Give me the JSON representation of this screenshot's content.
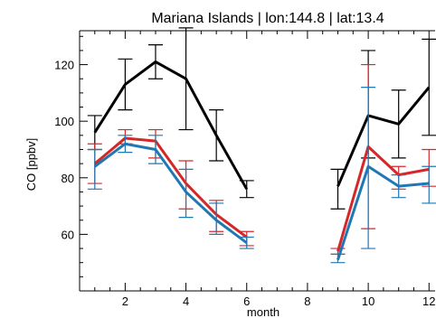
{
  "chart_data": {
    "type": "line",
    "title": "Mariana Islands | lon:144.8 | lat:13.4",
    "xlabel": "month",
    "ylabel": "CO [ppbv]",
    "xlim": [
      0.5,
      12.2
    ],
    "ylim": [
      40,
      132
    ],
    "xticks": [
      2,
      4,
      6,
      8,
      10,
      12
    ],
    "yticks": [
      60,
      80,
      100,
      120
    ],
    "xminor_step": 0.5,
    "yminor_step": 5,
    "grid": false,
    "legend": "none",
    "series": [
      {
        "color": "#000000",
        "x": [
          1,
          2,
          3,
          4,
          5,
          6,
          9,
          10,
          11,
          12
        ],
        "values": [
          96,
          113,
          121,
          115,
          95,
          76,
          77,
          102,
          99,
          112
        ],
        "err_low": [
          90,
          104,
          115,
          97,
          86,
          73,
          69,
          87,
          87,
          95
        ],
        "err_high": [
          102,
          122,
          127,
          133,
          104,
          79,
          83,
          125,
          111,
          129
        ]
      },
      {
        "color": "#d62728",
        "x": [
          1,
          2,
          3,
          4,
          5,
          6,
          9,
          10,
          11,
          12
        ],
        "values": [
          85,
          94,
          93,
          78,
          67,
          59,
          54,
          91,
          81,
          83
        ],
        "err_low": [
          78,
          92,
          87,
          69,
          61,
          56,
          53,
          62,
          76,
          77
        ],
        "err_high": [
          92,
          97,
          97,
          86,
          72,
          61,
          55,
          120,
          84,
          90
        ]
      },
      {
        "color": "#1f77b4",
        "x": [
          1,
          2,
          3,
          4,
          5,
          6,
          9,
          10,
          11,
          12
        ],
        "values": [
          84,
          92,
          90,
          75,
          65,
          57,
          51,
          84,
          77,
          78
        ],
        "err_low": [
          76,
          89,
          85,
          66,
          60,
          55,
          50,
          55,
          73,
          71
        ],
        "err_high": [
          90,
          95,
          95,
          83,
          71,
          59,
          53,
          112,
          81,
          84
        ]
      }
    ]
  }
}
